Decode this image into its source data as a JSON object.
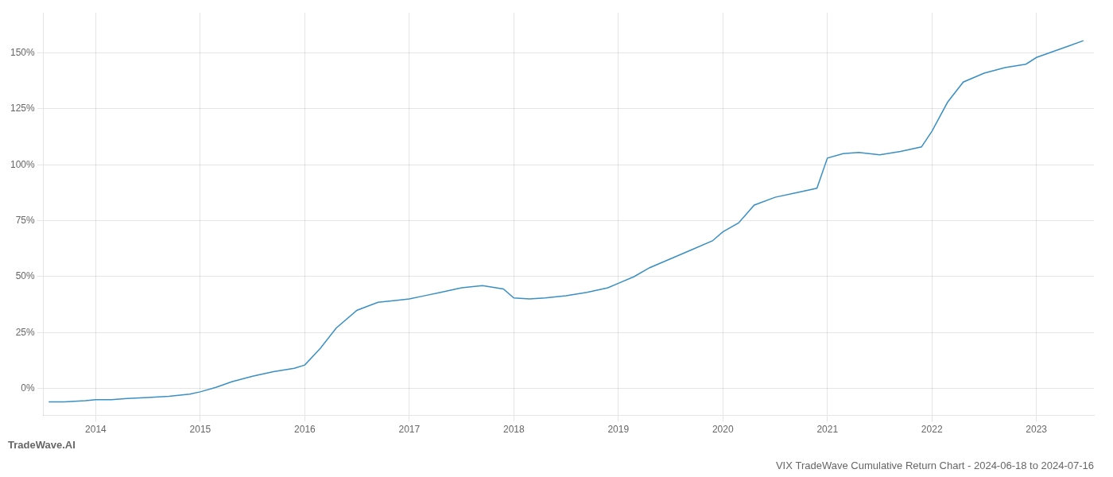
{
  "chart_data": {
    "type": "line",
    "title": "VIX TradeWave Cumulative Return Chart - 2024-06-18 to 2024-07-16",
    "annotations": [
      "TradeWave.AI"
    ],
    "x": [
      2013.55,
      2013.7,
      2013.9,
      2014.0,
      2014.15,
      2014.3,
      2014.5,
      2014.7,
      2014.9,
      2015.0,
      2015.15,
      2015.3,
      2015.5,
      2015.7,
      2015.9,
      2016.0,
      2016.15,
      2016.3,
      2016.5,
      2016.7,
      2016.9,
      2017.0,
      2017.15,
      2017.3,
      2017.5,
      2017.7,
      2017.9,
      2018.0,
      2018.15,
      2018.3,
      2018.5,
      2018.7,
      2018.9,
      2019.0,
      2019.15,
      2019.3,
      2019.5,
      2019.7,
      2019.9,
      2020.0,
      2020.15,
      2020.3,
      2020.5,
      2020.7,
      2020.9,
      2021.0,
      2021.15,
      2021.3,
      2021.5,
      2021.7,
      2021.9,
      2022.0,
      2022.15,
      2022.3,
      2022.5,
      2022.7,
      2022.9,
      2023.0,
      2023.15,
      2023.3,
      2023.45
    ],
    "values": [
      -6.0,
      -6.0,
      -5.5,
      -5.0,
      -5.0,
      -4.5,
      -4.0,
      -3.5,
      -2.5,
      -1.5,
      0.5,
      3.0,
      5.5,
      7.5,
      9.0,
      10.5,
      18.0,
      27.0,
      35.0,
      38.5,
      39.5,
      40.0,
      41.5,
      43.0,
      45.0,
      46.0,
      44.5,
      40.5,
      40.0,
      40.5,
      41.5,
      43.0,
      45.0,
      47.0,
      50.0,
      54.0,
      58.0,
      62.0,
      66.0,
      70.0,
      74.0,
      82.0,
      85.5,
      87.5,
      89.5,
      103.0,
      105.0,
      105.5,
      104.5,
      106.0,
      108.0,
      115.0,
      128.0,
      137.0,
      141.0,
      143.5,
      145.0,
      148.0,
      150.5,
      153.0,
      155.5
    ],
    "color": "#3a8fc4",
    "xlim": [
      2013.5,
      2023.55
    ],
    "xticks": [
      2014,
      2015,
      2016,
      2017,
      2018,
      2019,
      2020,
      2021,
      2022,
      2023
    ],
    "ylim": [
      -12,
      168
    ],
    "yticks": [
      {
        "value": 0,
        "label": "0%"
      },
      {
        "value": 25,
        "label": "25%"
      },
      {
        "value": 50,
        "label": "50%"
      },
      {
        "value": 75,
        "label": "75%"
      },
      {
        "value": 100,
        "label": "100%"
      },
      {
        "value": 125,
        "label": "125%"
      },
      {
        "value": 150,
        "label": "150%"
      }
    ],
    "grid": true
  }
}
